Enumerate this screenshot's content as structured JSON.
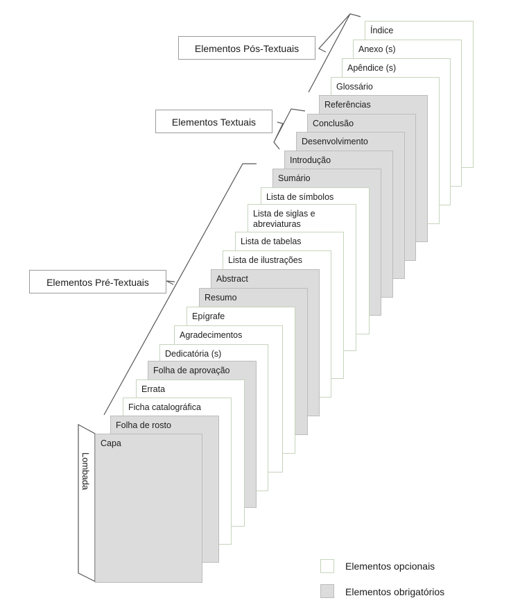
{
  "pages": [
    {
      "label": "Índice",
      "type": "optional"
    },
    {
      "label": "Anexo (s)",
      "type": "optional"
    },
    {
      "label": "Apêndice (s)",
      "type": "optional"
    },
    {
      "label": "Glossário",
      "type": "optional"
    },
    {
      "label": "Referências",
      "type": "mandatory"
    },
    {
      "label": "Conclusão",
      "type": "mandatory"
    },
    {
      "label": "Desenvolvimento",
      "type": "mandatory"
    },
    {
      "label": "Introdução",
      "type": "mandatory"
    },
    {
      "label": "Sumário",
      "type": "mandatory"
    },
    {
      "label": "Lista de símbolos",
      "type": "optional"
    },
    {
      "label": "Lista de siglas e\nabreviaturas",
      "type": "optional"
    },
    {
      "label": "Lista de tabelas",
      "type": "optional"
    },
    {
      "label": "Lista de ilustrações",
      "type": "optional"
    },
    {
      "label": "Abstract",
      "type": "mandatory"
    },
    {
      "label": "Resumo",
      "type": "mandatory"
    },
    {
      "label": "Epígrafe",
      "type": "optional"
    },
    {
      "label": "Agradecimentos",
      "type": "optional"
    },
    {
      "label": "Dedicatória (s)",
      "type": "optional"
    },
    {
      "label": "Folha de aprovação",
      "type": "mandatory"
    },
    {
      "label": "Errata",
      "type": "optional"
    },
    {
      "label": "Ficha catalográfica",
      "type": "optional"
    },
    {
      "label": "Folha de rosto",
      "type": "mandatory"
    },
    {
      "label": "Capa",
      "type": "mandatory"
    }
  ],
  "groups": {
    "post": "Elementos Pós-Textuais",
    "text": "Elementos Textuais",
    "pre": "Elementos Pré-Textuais"
  },
  "spine": "Lombada",
  "legend": {
    "optional": "Elementos opcionais",
    "mandatory": "Elementos obrigatórios"
  },
  "colors": {
    "optional_fill": "#ffffff",
    "optional_border": "#c6d4bc",
    "mandatory_fill": "#dcdcdc",
    "mandatory_border": "#bcbcbc"
  }
}
